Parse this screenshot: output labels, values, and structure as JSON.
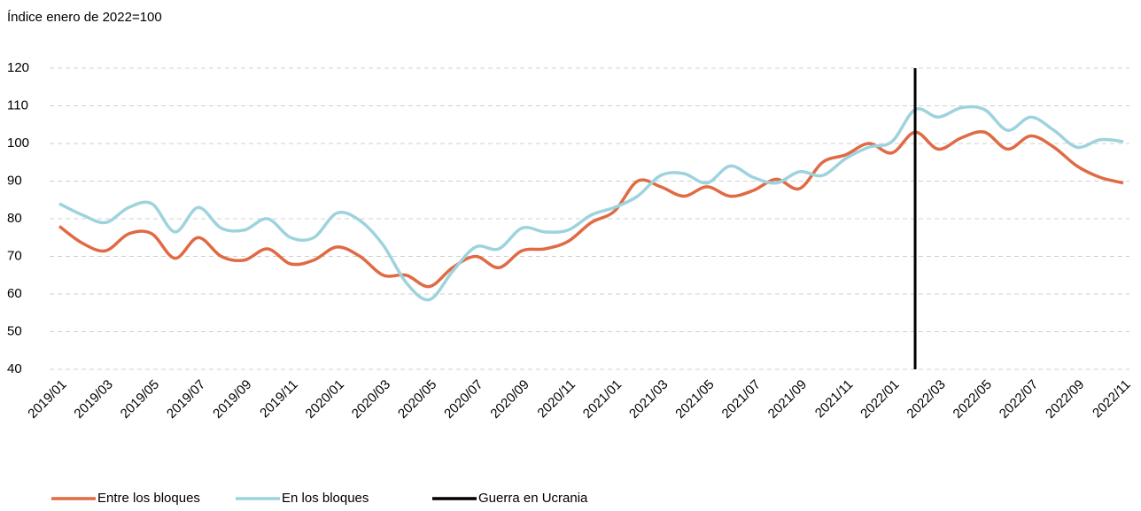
{
  "chart_data": {
    "type": "line",
    "y_axis_label": "Índice enero de 2022=100",
    "categories": [
      "2019/01",
      null,
      "2019/03",
      null,
      "2019/05",
      null,
      "2019/07",
      null,
      "2019/09",
      null,
      "2019/11",
      null,
      "2020/01",
      null,
      "2020/03",
      null,
      "2020/05",
      null,
      "2020/07",
      null,
      "2020/09",
      null,
      "2020/11",
      null,
      "2021/01",
      null,
      "2021/03",
      null,
      "2021/05",
      null,
      "2021/07",
      null,
      "2021/09",
      null,
      "2021/11",
      null,
      "2022/01",
      null,
      "2022/03",
      null,
      "2022/05",
      null,
      "2022/07",
      null,
      "2022/09",
      null,
      "2022/11"
    ],
    "series": [
      {
        "name": "Entre los bloques",
        "color": "#e06a43",
        "values": [
          78,
          73.5,
          71.5,
          76,
          76,
          69.5,
          75,
          70,
          69,
          72,
          68,
          69,
          72.5,
          70,
          65,
          65,
          62,
          67,
          70,
          67,
          71.5,
          72,
          74,
          79,
          82,
          90,
          88.5,
          86,
          88.5,
          86,
          87.5,
          90.5,
          88,
          95,
          97,
          100,
          97.5,
          103,
          98.5,
          101.5,
          103,
          98.5,
          102,
          99,
          94,
          91,
          89.5
        ]
      },
      {
        "name": "En los bloques",
        "color": "#9ed3de",
        "values": [
          84,
          81,
          79,
          83,
          84,
          76.5,
          83,
          77.5,
          77,
          80,
          75,
          75,
          81.5,
          79.5,
          73,
          63,
          58.5,
          66,
          72.5,
          72,
          77.5,
          76.5,
          77,
          81,
          83,
          86,
          91.5,
          92,
          89.5,
          94,
          91,
          89.5,
          92.5,
          91.5,
          96,
          99,
          100.5,
          109,
          107,
          109.5,
          109,
          103.5,
          107,
          103.5,
          99,
          101,
          100.5
        ]
      }
    ],
    "events": [
      {
        "name": "Guerra en Ucrania",
        "color": "#000000",
        "category_index": 37
      }
    ],
    "ylim": [
      40,
      120
    ],
    "yticks": [
      40,
      50,
      60,
      70,
      80,
      90,
      100,
      110,
      120
    ],
    "grid": true
  }
}
